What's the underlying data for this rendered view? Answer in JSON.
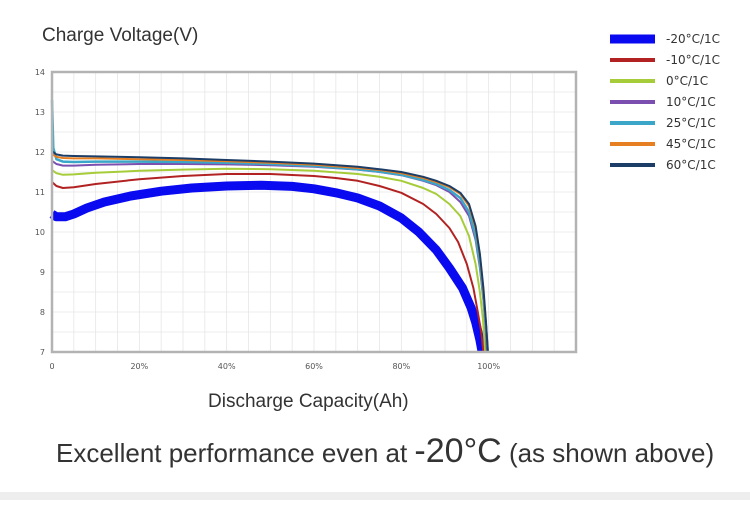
{
  "chart_data": {
    "type": "line",
    "title": "",
    "ylabel": "Charge Voltage(V)",
    "xlabel": "Discharge Capacity(Ah)",
    "xlim": [
      0,
      120
    ],
    "ylim": [
      7,
      14
    ],
    "x_ticks": [
      "0",
      "20%",
      "40%",
      "60%",
      "80%",
      "100%"
    ],
    "x_tick_values": [
      0,
      20,
      40,
      60,
      80,
      100
    ],
    "y_ticks": [
      7,
      8,
      9,
      10,
      11,
      12,
      13,
      14
    ],
    "grid": true,
    "legend_position": "top-right",
    "series": [
      {
        "name": "-20°C/1C",
        "color": "#0a0af0",
        "x": [
          0,
          1,
          3,
          5,
          8,
          12,
          18,
          25,
          32,
          40,
          48,
          55,
          60,
          65,
          70,
          75,
          80,
          84,
          88,
          91,
          94,
          96,
          97,
          98,
          98.5
        ],
        "y": [
          10.45,
          10.38,
          10.38,
          10.45,
          10.6,
          10.75,
          10.9,
          11.02,
          11.1,
          11.15,
          11.17,
          11.14,
          11.08,
          10.98,
          10.85,
          10.65,
          10.35,
          10.0,
          9.55,
          9.1,
          8.6,
          8.1,
          7.75,
          7.3,
          7.0
        ]
      },
      {
        "name": "-10°C/1C",
        "color": "#b22222",
        "x": [
          0,
          1,
          2.5,
          5,
          10,
          20,
          30,
          40,
          50,
          60,
          65,
          70,
          75,
          80,
          85,
          88,
          91,
          93,
          95,
          96.5,
          97.5,
          98.3,
          98.8
        ],
        "y": [
          11.25,
          11.15,
          11.1,
          11.12,
          11.2,
          11.32,
          11.4,
          11.45,
          11.45,
          11.4,
          11.35,
          11.28,
          11.15,
          10.98,
          10.7,
          10.45,
          10.1,
          9.75,
          9.2,
          8.6,
          8.0,
          7.5,
          7.0
        ]
      },
      {
        "name": "0°C/1C",
        "color": "#a6cc3a",
        "x": [
          0,
          1,
          2.5,
          5,
          10,
          20,
          30,
          40,
          50,
          60,
          70,
          75,
          80,
          85,
          88,
          91,
          93.5,
          95.5,
          97,
          98,
          98.7,
          99.2
        ],
        "y": [
          11.55,
          11.47,
          11.43,
          11.44,
          11.48,
          11.53,
          11.56,
          11.58,
          11.57,
          11.53,
          11.45,
          11.38,
          11.28,
          11.1,
          10.95,
          10.7,
          10.4,
          9.9,
          9.2,
          8.5,
          7.8,
          7.0
        ]
      },
      {
        "name": "10°C/1C",
        "color": "#7b4fb0",
        "x": [
          0,
          1,
          2.5,
          5,
          10,
          20,
          30,
          40,
          50,
          60,
          70,
          75,
          80,
          85,
          88,
          91,
          93.5,
          95.5,
          97,
          98,
          98.8,
          99.3,
          99.6
        ],
        "y": [
          11.78,
          11.7,
          11.66,
          11.66,
          11.68,
          11.7,
          11.7,
          11.69,
          11.67,
          11.63,
          11.56,
          11.5,
          11.42,
          11.28,
          11.17,
          11.0,
          10.75,
          10.4,
          9.8,
          9.1,
          8.3,
          7.6,
          7.0
        ]
      },
      {
        "name": "25°C/1C",
        "color": "#3ba6c8",
        "x": [
          0,
          0.3,
          1,
          2.5,
          5,
          10,
          20,
          30,
          40,
          50,
          60,
          70,
          75,
          80,
          85,
          88,
          91,
          93.5,
          95.5,
          97,
          98,
          98.8,
          99.4,
          99.8
        ],
        "y": [
          13.3,
          12.1,
          11.82,
          11.76,
          11.75,
          11.76,
          11.76,
          11.75,
          11.73,
          11.7,
          11.65,
          11.57,
          11.51,
          11.43,
          11.3,
          11.2,
          11.05,
          10.85,
          10.5,
          9.9,
          9.2,
          8.4,
          7.6,
          7.0
        ]
      },
      {
        "name": "45°C/1C",
        "color": "#e67e22",
        "x": [
          0,
          1,
          2.5,
          5,
          10,
          20,
          30,
          40,
          50,
          60,
          70,
          75,
          80,
          85,
          88,
          91,
          93.5,
          95.5,
          97,
          98,
          98.8,
          99.4,
          99.8
        ],
        "y": [
          11.95,
          11.88,
          11.85,
          11.84,
          11.84,
          11.82,
          11.8,
          11.77,
          11.73,
          11.68,
          11.6,
          11.55,
          11.47,
          11.35,
          11.25,
          11.12,
          10.95,
          10.65,
          10.1,
          9.4,
          8.5,
          7.7,
          7.0
        ]
      },
      {
        "name": "60°C/1C",
        "color": "#1c3d66",
        "x": [
          0,
          1,
          2.5,
          5,
          10,
          20,
          30,
          40,
          50,
          60,
          70,
          75,
          80,
          85,
          88,
          91,
          93.5,
          95.5,
          97,
          98,
          98.8,
          99.4,
          99.8
        ],
        "y": [
          12.02,
          11.94,
          11.91,
          11.9,
          11.89,
          11.87,
          11.84,
          11.8,
          11.76,
          11.71,
          11.63,
          11.57,
          11.5,
          11.38,
          11.28,
          11.15,
          10.98,
          10.7,
          10.15,
          9.45,
          8.6,
          7.75,
          7.0
        ]
      }
    ]
  },
  "caption": {
    "prefix": "Excellent performance even at ",
    "highlight": "-20°C",
    "suffix": " (as shown above)"
  }
}
